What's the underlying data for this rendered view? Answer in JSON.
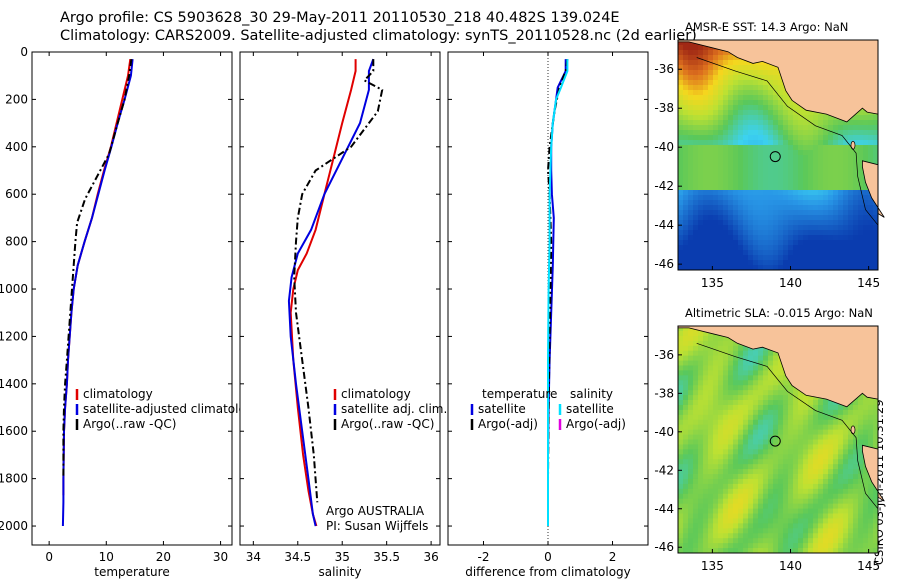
{
  "header": {
    "line1": "Argo profile: CS 5903628_30 29-May-2011 20110530_218 40.482S 139.024E",
    "line2": "Climatology: CARS2009. Satellite-adjusted climatology: synTS_20110528.nc (2d earlier)"
  },
  "credit": "CSIRO 03-Jun-2011 10:31:29",
  "chart_data": [
    {
      "type": "line",
      "xlabel": "temperature",
      "xlim": [
        -3,
        32
      ],
      "ylim": [
        2080,
        0
      ],
      "y_reversed": true,
      "xticks": [
        0,
        10,
        20,
        30
      ],
      "yticks": [
        0,
        200,
        400,
        600,
        800,
        1000,
        1200,
        1400,
        1600,
        1800,
        2000
      ],
      "legend": {
        "position": "lower-right",
        "entries": [
          "climatology",
          "satellite-adjusted climatology",
          "Argo(..raw -QC)"
        ]
      },
      "series": [
        {
          "name": "climatology",
          "color": "#e00000",
          "style": "solid",
          "x": [
            14.2,
            13.8,
            12.8,
            11.8,
            10.8,
            9.6,
            8.5,
            7.5,
            6.2,
            5.0,
            4.3,
            3.9,
            3.6,
            3.3,
            3.1,
            2.8,
            2.6,
            2.5,
            2.5
          ],
          "y": [
            30,
            100,
            200,
            300,
            400,
            500,
            600,
            700,
            800,
            900,
            1000,
            1100,
            1200,
            1300,
            1400,
            1500,
            1600,
            1800,
            1870
          ]
        },
        {
          "name": "satellite-adjusted climatology",
          "color": "#0000e0",
          "style": "solid",
          "x": [
            14.6,
            14.3,
            13.2,
            12.0,
            10.9,
            9.7,
            8.6,
            7.5,
            6.2,
            5.0,
            4.3,
            3.9,
            3.6,
            3.3,
            3.1,
            2.8,
            2.6,
            2.5,
            2.5,
            2.4
          ],
          "y": [
            30,
            100,
            200,
            300,
            400,
            500,
            600,
            700,
            800,
            900,
            1000,
            1100,
            1200,
            1300,
            1400,
            1500,
            1600,
            1800,
            1900,
            2000
          ]
        },
        {
          "name": "Argo(..raw -QC)",
          "color": "#000000",
          "style": "dashdot",
          "x": [
            14.4,
            14.0,
            13.2,
            12.0,
            10.5,
            8.5,
            6.3,
            4.9,
            4.6,
            4.3,
            4.0,
            3.7,
            3.4,
            3.1,
            2.8,
            2.6,
            2.5,
            2.5
          ],
          "y": [
            30,
            100,
            200,
            300,
            430,
            520,
            620,
            720,
            800,
            900,
            1000,
            1100,
            1200,
            1300,
            1400,
            1500,
            1600,
            1800
          ]
        }
      ]
    },
    {
      "type": "line",
      "xlabel": "salinity",
      "xlim": [
        33.85,
        36.1
      ],
      "ylim": [
        2080,
        0
      ],
      "y_reversed": true,
      "xticks": [
        34,
        34.5,
        35,
        35.5,
        36
      ],
      "xticklabels": [
        "34",
        "34.5",
        "35",
        "35.5",
        "36"
      ],
      "legend": {
        "position": "lower-right",
        "entries": [
          "climatology",
          "satellite adj. clim.",
          "Argo(..raw -QC)"
        ]
      },
      "annotation": [
        "Argo AUSTRALIA",
        "PI: Susan Wijffels"
      ],
      "series": [
        {
          "name": "climatology",
          "color": "#e00000",
          "style": "solid",
          "x": [
            35.15,
            35.15,
            35.1,
            35.0,
            34.9,
            34.8,
            34.7,
            34.6,
            34.5,
            34.45,
            34.42,
            34.45,
            34.5,
            34.56,
            34.62,
            34.67,
            34.71
          ],
          "y": [
            30,
            80,
            160,
            300,
            450,
            600,
            750,
            850,
            920,
            1000,
            1100,
            1300,
            1500,
            1700,
            1850,
            1950,
            2000
          ]
        },
        {
          "name": "satellite adj. clim.",
          "color": "#0000e0",
          "style": "solid",
          "x": [
            35.35,
            35.3,
            35.3,
            35.2,
            35.0,
            34.8,
            34.65,
            34.5,
            34.43,
            34.4,
            34.42,
            34.48,
            34.55,
            34.62,
            34.67,
            34.7
          ],
          "y": [
            30,
            80,
            160,
            300,
            450,
            600,
            750,
            850,
            950,
            1050,
            1200,
            1400,
            1600,
            1800,
            1950,
            2000
          ]
        },
        {
          "name": "Argo(..raw -QC)",
          "color": "#000000",
          "style": "dashdot",
          "x": [
            35.35,
            35.35,
            35.25,
            35.45,
            35.4,
            35.1,
            34.7,
            34.55,
            34.5,
            34.48,
            34.46,
            34.48,
            34.55,
            34.62,
            34.68,
            34.72
          ],
          "y": [
            30,
            80,
            120,
            160,
            250,
            400,
            500,
            600,
            700,
            800,
            950,
            1100,
            1300,
            1500,
            1700,
            1900
          ]
        }
      ]
    },
    {
      "type": "line",
      "xlabel": "difference from climatology",
      "xlim": [
        -3.1,
        3.1
      ],
      "ylim": [
        2080,
        0
      ],
      "y_reversed": true,
      "xticks": [
        -2,
        0,
        2
      ],
      "legend": {
        "position": "lower-right",
        "columns": [
          {
            "heading": "temperature",
            "entries": [
              "satellite",
              "Argo(-adj)"
            ]
          },
          {
            "heading": "salinity",
            "entries": [
              "satellite",
              "Argo(-adj)"
            ]
          }
        ]
      },
      "series": [
        {
          "name": "satellite",
          "group": "temperature",
          "color": "#0000e0",
          "style": "solid",
          "x": [
            0.55,
            0.55,
            0.3,
            0.25,
            0.15,
            0.1,
            0.1,
            0.12,
            0.18,
            0.15,
            0.1,
            0.05,
            0.02,
            0.0,
            0.0
          ],
          "y": [
            30,
            80,
            150,
            200,
            300,
            400,
            500,
            600,
            700,
            900,
            1100,
            1300,
            1500,
            1700,
            2000
          ]
        },
        {
          "name": "Argo(-adj)",
          "group": "temperature",
          "color": "#000000",
          "style": "dashdot",
          "x": [
            0.6,
            0.55,
            0.35,
            0.2,
            0.05,
            0.0,
            0.05,
            0.1,
            0.08,
            0.05,
            0.02,
            0.0
          ],
          "y": [
            30,
            80,
            150,
            250,
            400,
            500,
            600,
            800,
            1000,
            1200,
            1500,
            1800
          ]
        },
        {
          "name": "satellite",
          "group": "salinity",
          "color": "#00e0ff",
          "style": "solid",
          "x": [
            0.6,
            0.6,
            0.4,
            0.25,
            0.15,
            0.1,
            0.05,
            0.05,
            0.02,
            0.0,
            0.0,
            0.0
          ],
          "y": [
            30,
            80,
            150,
            200,
            300,
            400,
            600,
            800,
            1000,
            1300,
            1600,
            2000
          ]
        },
        {
          "name": "Argo(-adj)",
          "group": "salinity",
          "color": "#e000e0",
          "style": "solid",
          "x": [],
          "y": []
        }
      ]
    },
    {
      "type": "heatmap",
      "title": "AMSR-E SST: 14.3 Argo: NaN",
      "xlim": [
        132.8,
        145.6
      ],
      "ylim": [
        -46.3,
        -34.5
      ],
      "xticks": [
        135,
        140,
        145
      ],
      "yticks": [
        -36,
        -38,
        -40,
        -42,
        -44,
        -46
      ],
      "marker": {
        "lon": 139.024,
        "lat": -40.482
      },
      "land_color": "#f7c39a"
    },
    {
      "type": "heatmap",
      "title": "Altimetric SLA: -0.015 Argo: NaN",
      "xlim": [
        132.8,
        145.6
      ],
      "ylim": [
        -46.3,
        -34.5
      ],
      "xticks": [
        135,
        140,
        145
      ],
      "yticks": [
        -36,
        -38,
        -40,
        -42,
        -44,
        -46
      ],
      "marker": {
        "lon": 139.024,
        "lat": -40.482
      },
      "land_color": "#f7c39a"
    }
  ]
}
